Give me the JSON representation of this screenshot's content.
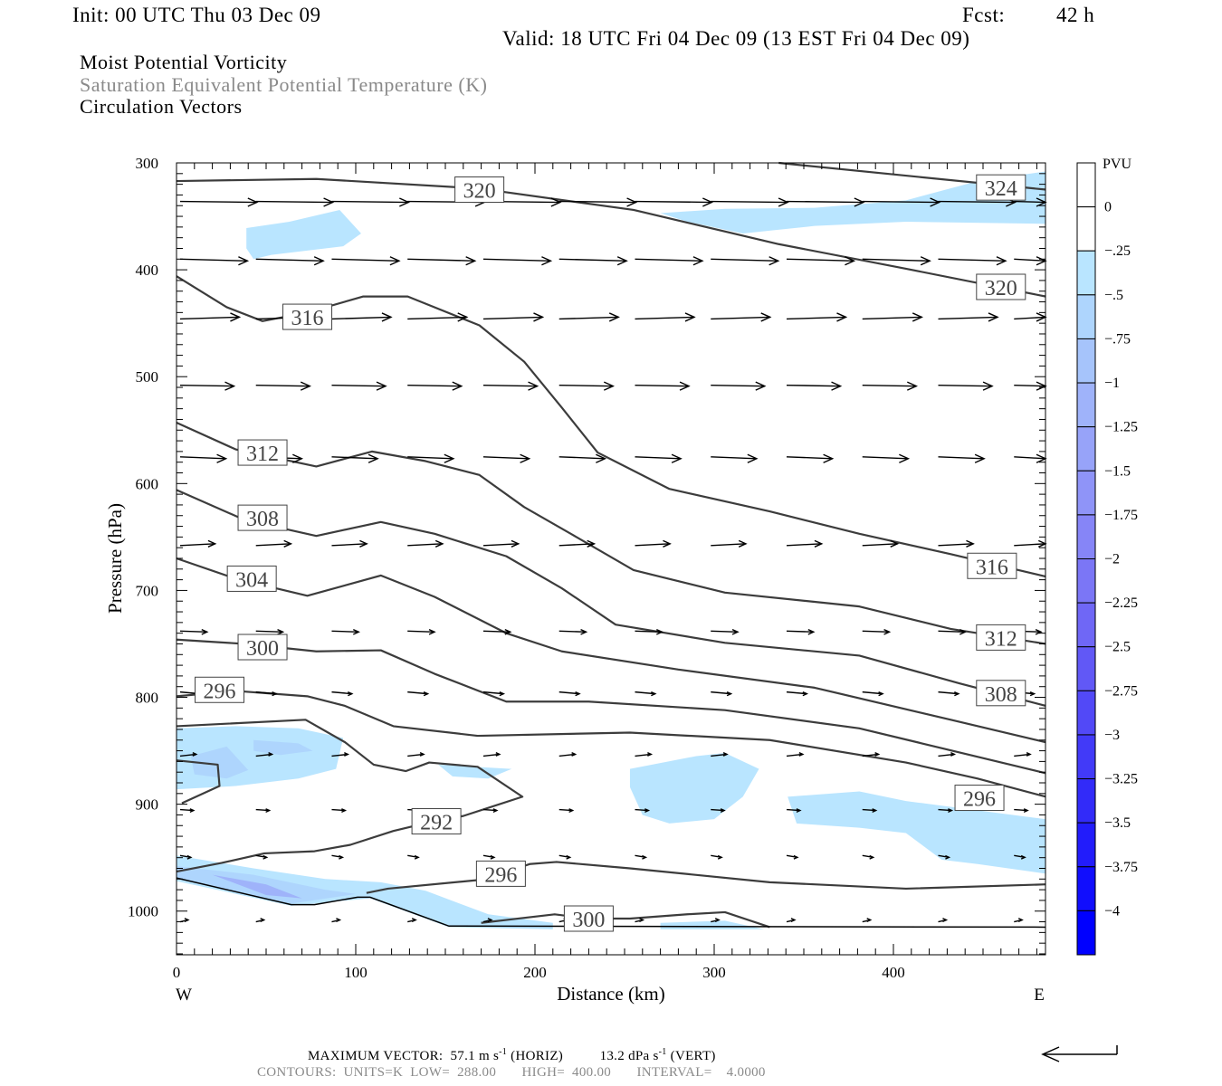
{
  "header": {
    "init": "Init: 00 UTC Thu 03 Dec 09",
    "fcst_label": "Fcst:",
    "fcst_value": "42 h",
    "valid": "Valid: 18 UTC Fri 04 Dec 09 (13 EST Fri 04 Dec 09)",
    "fields": [
      "Moist Potential Vorticity",
      "Saturation Equivalent Potential Temperature (K)",
      "Circulation Vectors"
    ]
  },
  "footer": {
    "max_vector_label": "MAXIMUM VECTOR:",
    "horiz_value": "57.1 m s",
    "horiz_unit": "(HORIZ)",
    "vert_value": "13.2 dPa s",
    "vert_unit": "(VERT)",
    "exp": "-1",
    "contours": "CONTOURS:  UNITS=K  LOW=  288.00       HIGH=  400.00       INTERVAL=    4.0000"
  },
  "chart_data": {
    "type": "cross-section",
    "xlabel": "Distance (km)",
    "ylabel": "Pressure (hPa)",
    "xlim": [
      0,
      485
    ],
    "ylim": [
      300,
      1040
    ],
    "x_ticks": [
      0,
      100,
      200,
      300,
      400
    ],
    "y_ticks": [
      300,
      400,
      500,
      600,
      700,
      800,
      900,
      1000
    ],
    "x_end_labels": {
      "left": "W",
      "right": "E"
    },
    "colorbar": {
      "unit": "PVU",
      "labels": [
        "0",
        "-.25",
        "-.5",
        "-.75",
        "-1",
        "-1.25",
        "-1.5",
        "-1.75",
        "-2",
        "-2.25",
        "-2.5",
        "-2.75",
        "-3",
        "-3.25",
        "-3.5",
        "-3.75",
        "-4"
      ],
      "colors": [
        "#ffffff",
        "#ffffff",
        "#b9e5ff",
        "#aed5fd",
        "#a6c4fb",
        "#9fb3fa",
        "#97a3f9",
        "#8f94f8",
        "#8685f7",
        "#7b76f6",
        "#6f67f6",
        "#6158f6",
        "#5249f7",
        "#423af8",
        "#322bf9",
        "#221cfb",
        "#110efd",
        "#0000ff"
      ]
    },
    "pv_shading": [
      {
        "level": -0.25,
        "points": [
          [
            270,
            347
          ],
          [
            306,
            343
          ],
          [
            356,
            342
          ],
          [
            407,
            335
          ],
          [
            447,
            317
          ],
          [
            485,
            308
          ],
          [
            485,
            357
          ],
          [
            407,
            355
          ],
          [
            356,
            359
          ],
          [
            316,
            366
          ],
          [
            285,
            355
          ]
        ]
      },
      {
        "level": -0.25,
        "points": [
          [
            39,
            361
          ],
          [
            63,
            355
          ],
          [
            91,
            344
          ],
          [
            103,
            366
          ],
          [
            93,
            378
          ],
          [
            53,
            386
          ],
          [
            43,
            390
          ],
          [
            39,
            380
          ]
        ]
      },
      {
        "level": -0.25,
        "points": [
          [
            0,
            829
          ],
          [
            33,
            827
          ],
          [
            68,
            829
          ],
          [
            93,
            838
          ],
          [
            89,
            867
          ],
          [
            68,
            876
          ],
          [
            33,
            883
          ],
          [
            0,
            886
          ]
        ]
      },
      {
        "level": -0.5,
        "points": [
          [
            8,
            855
          ],
          [
            28,
            846
          ],
          [
            40,
            868
          ],
          [
            28,
            876
          ],
          [
            10,
            872
          ]
        ]
      },
      {
        "level": -0.5,
        "points": [
          [
            43,
            840
          ],
          [
            68,
            843
          ],
          [
            76,
            850
          ],
          [
            58,
            854
          ],
          [
            43,
            850
          ]
        ]
      },
      {
        "level": -0.25,
        "points": [
          [
            146,
            863
          ],
          [
            187,
            867
          ],
          [
            174,
            876
          ],
          [
            154,
            874
          ]
        ]
      },
      {
        "level": -0.25,
        "points": [
          [
            253,
            867
          ],
          [
            290,
            855
          ],
          [
            306,
            852
          ],
          [
            325,
            867
          ],
          [
            316,
            893
          ],
          [
            300,
            914
          ],
          [
            275,
            918
          ],
          [
            260,
            910
          ],
          [
            253,
            884
          ]
        ]
      },
      {
        "level": -0.25,
        "points": [
          [
            341,
            893
          ],
          [
            381,
            888
          ],
          [
            407,
            897
          ],
          [
            485,
            914
          ],
          [
            485,
            965
          ],
          [
            447,
            956
          ],
          [
            427,
            952
          ],
          [
            407,
            927
          ],
          [
            381,
            922
          ],
          [
            346,
            918
          ]
        ]
      },
      {
        "level": -0.25,
        "points": [
          [
            0,
            948
          ],
          [
            43,
            960
          ],
          [
            83,
            970
          ],
          [
            114,
            973
          ],
          [
            139,
            981
          ],
          [
            174,
            1003
          ],
          [
            210,
            1011
          ],
          [
            210,
            1017
          ],
          [
            152,
            1015
          ],
          [
            108,
            988
          ],
          [
            64,
            995
          ],
          [
            0,
            972
          ]
        ]
      },
      {
        "level": -0.5,
        "points": [
          [
            0,
            958
          ],
          [
            43,
            966
          ],
          [
            83,
            980
          ],
          [
            100,
            984
          ],
          [
            64,
            993
          ],
          [
            0,
            970
          ]
        ]
      },
      {
        "level": -1.0,
        "points": [
          [
            20,
            966
          ],
          [
            50,
            975
          ],
          [
            70,
            988
          ],
          [
            50,
            985
          ]
        ]
      },
      {
        "level": -0.25,
        "points": [
          [
            270,
            1011
          ],
          [
            306,
            1009
          ],
          [
            328,
            1017
          ],
          [
            270,
            1017
          ]
        ]
      }
    ],
    "theta_es_contours": [
      {
        "value": 320,
        "points": [
          [
            0,
            317
          ],
          [
            78,
            315
          ],
          [
            169,
            324
          ],
          [
            255,
            344
          ],
          [
            336,
            376
          ],
          [
            407,
            399
          ],
          [
            485,
            425
          ]
        ]
      },
      {
        "value": 324,
        "points": [
          [
            336,
            300
          ],
          [
            485,
            325
          ]
        ]
      },
      {
        "value": 316,
        "points": [
          [
            0,
            406
          ],
          [
            28,
            435
          ],
          [
            48,
            448
          ],
          [
            73,
            440
          ],
          [
            104,
            425
          ],
          [
            129,
            425
          ],
          [
            169,
            452
          ],
          [
            194,
            486
          ],
          [
            215,
            529
          ],
          [
            235,
            571
          ],
          [
            275,
            605
          ],
          [
            331,
            626
          ],
          [
            381,
            647
          ],
          [
            432,
            666
          ],
          [
            485,
            687
          ]
        ]
      },
      {
        "value": 312,
        "points": [
          [
            0,
            543
          ],
          [
            33,
            568
          ],
          [
            78,
            584
          ],
          [
            109,
            570
          ],
          [
            139,
            579
          ],
          [
            169,
            592
          ],
          [
            194,
            622
          ],
          [
            220,
            647
          ],
          [
            255,
            681
          ],
          [
            306,
            702
          ],
          [
            381,
            715
          ],
          [
            432,
            736
          ],
          [
            485,
            750
          ]
        ]
      },
      {
        "value": 308,
        "points": [
          [
            0,
            606
          ],
          [
            38,
            634
          ],
          [
            78,
            649
          ],
          [
            114,
            636
          ],
          [
            144,
            647
          ],
          [
            184,
            668
          ],
          [
            215,
            698
          ],
          [
            245,
            732
          ],
          [
            306,
            749
          ],
          [
            381,
            761
          ],
          [
            437,
            787
          ],
          [
            485,
            808
          ]
        ]
      },
      {
        "value": 304,
        "points": [
          [
            0,
            670
          ],
          [
            33,
            689
          ],
          [
            73,
            705
          ],
          [
            114,
            686
          ],
          [
            144,
            706
          ],
          [
            184,
            740
          ],
          [
            215,
            757
          ],
          [
            280,
            774
          ],
          [
            356,
            791
          ],
          [
            432,
            821
          ],
          [
            485,
            842
          ]
        ]
      },
      {
        "value": 300,
        "points": [
          [
            0,
            746
          ],
          [
            38,
            750
          ],
          [
            78,
            757
          ],
          [
            114,
            756
          ],
          [
            144,
            778
          ],
          [
            184,
            804
          ],
          [
            230,
            804
          ],
          [
            306,
            812
          ],
          [
            381,
            829
          ],
          [
            485,
            871
          ]
        ]
      },
      {
        "value": 296,
        "points": [
          [
            0,
            799
          ],
          [
            33,
            794
          ],
          [
            73,
            799
          ],
          [
            94,
            808
          ],
          [
            121,
            827
          ],
          [
            168,
            836
          ],
          [
            253,
            833
          ],
          [
            331,
            840
          ],
          [
            407,
            861
          ],
          [
            447,
            876
          ],
          [
            485,
            893
          ]
        ]
      },
      {
        "value": 292,
        "points": [
          [
            0,
            827
          ],
          [
            72,
            821
          ],
          [
            94,
            842
          ],
          [
            110,
            863
          ],
          [
            128,
            869
          ],
          [
            141,
            861
          ],
          [
            168,
            865
          ],
          [
            193,
            893
          ],
          [
            160,
            911
          ],
          [
            131,
            921
          ],
          [
            121,
            925
          ],
          [
            97,
            938
          ],
          [
            77,
            944
          ],
          [
            49,
            946
          ],
          [
            25,
            955
          ],
          [
            0,
            963
          ]
        ]
      },
      {
        "value": 292,
        "points": [
          [
            0,
            859
          ],
          [
            23,
            863
          ],
          [
            24,
            883
          ],
          [
            3,
            899
          ]
        ]
      },
      {
        "value": 296,
        "points": [
          [
            106,
            983
          ],
          [
            118,
            979
          ],
          [
            168,
            971
          ],
          [
            181,
            965
          ],
          [
            197,
            956
          ],
          [
            212,
            954
          ],
          [
            253,
            960
          ],
          [
            331,
            973
          ],
          [
            407,
            979
          ],
          [
            485,
            975
          ]
        ]
      },
      {
        "value": 300,
        "points": [
          [
            170,
            1011
          ],
          [
            211,
            1003
          ],
          [
            230,
            1007
          ],
          [
            253,
            1007
          ],
          [
            285,
            1003
          ],
          [
            306,
            1001
          ],
          [
            331,
            1015
          ]
        ]
      }
    ],
    "terrain": [
      [
        0,
        969
      ],
      [
        64,
        994
      ],
      [
        77,
        994
      ],
      [
        101,
        987
      ],
      [
        108,
        987
      ],
      [
        152,
        1014
      ],
      [
        485,
        1015
      ]
    ],
    "contour_labels": [
      {
        "text": "324",
        "x": 460,
        "p": 323
      },
      {
        "text": "320",
        "x": 169,
        "p": 325
      },
      {
        "text": "320",
        "x": 460,
        "p": 416
      },
      {
        "text": "316",
        "x": 73,
        "p": 444
      },
      {
        "text": "316",
        "x": 455,
        "p": 677
      },
      {
        "text": "312",
        "x": 48,
        "p": 571
      },
      {
        "text": "312",
        "x": 460,
        "p": 744
      },
      {
        "text": "308",
        "x": 48,
        "p": 632
      },
      {
        "text": "308",
        "x": 460,
        "p": 796
      },
      {
        "text": "304",
        "x": 42,
        "p": 689
      },
      {
        "text": "300",
        "x": 48,
        "p": 753
      },
      {
        "text": "296",
        "x": 24,
        "p": 793
      },
      {
        "text": "296",
        "x": 448,
        "p": 894
      },
      {
        "text": "292",
        "x": 145,
        "p": 916
      },
      {
        "text": "296",
        "x": 181,
        "p": 965
      },
      {
        "text": "300",
        "x": 230,
        "p": 1007
      }
    ],
    "vectors": {
      "x_start": 2,
      "x_spacing": 42.3,
      "count": 12,
      "rows": [
        {
          "p": 336,
          "u": 57
        },
        {
          "p": 390,
          "u": 50
        },
        {
          "p": 446,
          "u": 44
        },
        {
          "p": 508,
          "u": 40
        },
        {
          "p": 575,
          "u": 34
        },
        {
          "p": 658,
          "u": 26
        },
        {
          "p": 738,
          "u": 20
        },
        {
          "p": 795,
          "u": 15
        },
        {
          "p": 855,
          "u": 12
        },
        {
          "p": 905,
          "u": 10
        },
        {
          "p": 948,
          "u": 8
        },
        {
          "p": 1010,
          "u": 6
        }
      ],
      "max_u": 57.1
    }
  }
}
